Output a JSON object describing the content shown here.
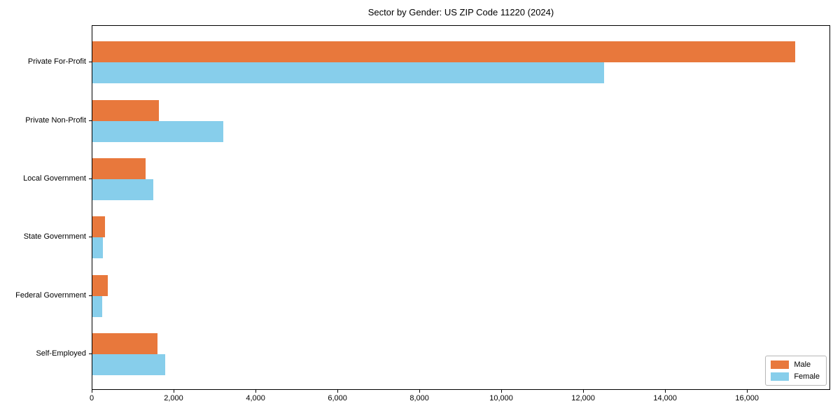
{
  "chart_data": {
    "type": "bar",
    "orientation": "horizontal",
    "title": "Sector by Gender: US ZIP Code 11220 (2024)",
    "categories": [
      "Private For-Profit",
      "Private Non-Profit",
      "Local Government",
      "State Government",
      "Federal Government",
      "Self-Employed"
    ],
    "series": [
      {
        "name": "Male",
        "color": "#E8783C",
        "values": [
          17150,
          1620,
          1300,
          305,
          375,
          1585
        ]
      },
      {
        "name": "Female",
        "color": "#87CEEB",
        "values": [
          12490,
          3190,
          1485,
          255,
          230,
          1775
        ]
      }
    ],
    "xlim": [
      0,
      18030
    ],
    "xticks": [
      0,
      2000,
      4000,
      6000,
      8000,
      10000,
      12000,
      14000,
      16000
    ],
    "xtick_labels": [
      "0",
      "2,000",
      "4,000",
      "6,000",
      "8,000",
      "10,000",
      "12,000",
      "14,000",
      "16,000"
    ],
    "xlabel": "",
    "ylabel": "",
    "grid": false,
    "legend_position": "lower right"
  }
}
